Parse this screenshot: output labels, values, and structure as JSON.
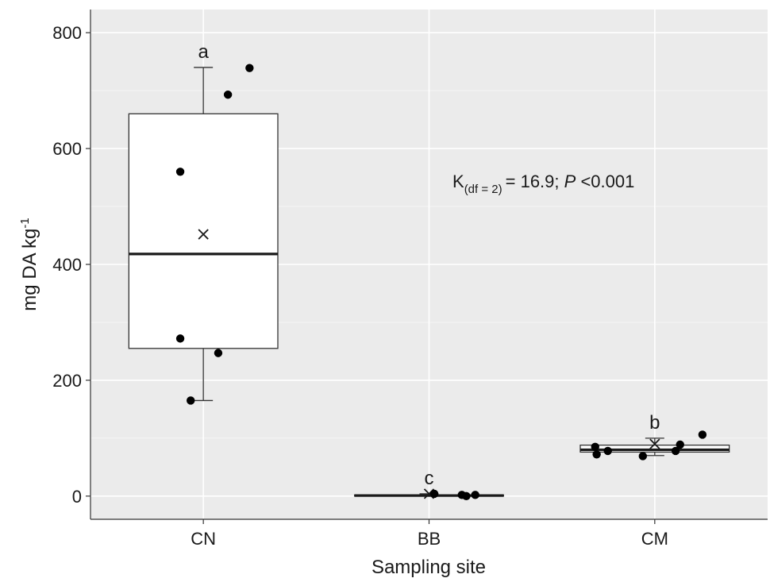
{
  "chart_data": {
    "type": "box",
    "xlabel": "Sampling site",
    "ylabel": {
      "base": "mg DA kg",
      "superscript": "-1"
    },
    "ylim": [
      -40,
      840
    ],
    "yticks": [
      0,
      200,
      400,
      600,
      800
    ],
    "grid": true,
    "categories": [
      "CN",
      "BB",
      "CM"
    ],
    "groups": [
      {
        "name": "CN",
        "whisker_low": 165,
        "q1": 255,
        "median": 418,
        "q3": 660,
        "whisker_high": 740,
        "mean": 452,
        "letter": "a",
        "points": [
          {
            "dx": -0.31,
            "y": 560
          },
          {
            "dx": -0.31,
            "y": 272
          },
          {
            "dx": -0.17,
            "y": 165
          },
          {
            "dx": 0.2,
            "y": 247
          },
          {
            "dx": 0.33,
            "y": 693
          },
          {
            "dx": 0.62,
            "y": 739
          }
        ]
      },
      {
        "name": "BB",
        "whisker_low": 0,
        "q1": 0,
        "median": 1,
        "q3": 2,
        "whisker_high": 4,
        "mean": 4,
        "letter": "c",
        "points": [
          {
            "dx": 0.07,
            "y": 4
          },
          {
            "dx": 0.44,
            "y": 2
          },
          {
            "dx": 0.5,
            "y": 0
          },
          {
            "dx": 0.62,
            "y": 2
          }
        ]
      },
      {
        "name": "CM",
        "whisker_low": 70,
        "q1": 76,
        "median": 80,
        "q3": 88,
        "whisker_high": 100,
        "mean": 90,
        "letter": "b",
        "points": [
          {
            "dx": -0.8,
            "y": 85
          },
          {
            "dx": -0.78,
            "y": 72
          },
          {
            "dx": -0.63,
            "y": 78
          },
          {
            "dx": -0.16,
            "y": 69
          },
          {
            "dx": 0.28,
            "y": 78
          },
          {
            "dx": 0.34,
            "y": 89
          },
          {
            "dx": 0.64,
            "y": 106
          }
        ]
      }
    ],
    "annotation": {
      "k_symbol": "K",
      "k_subscript": "(df = 2)",
      "k_value": "= 16.9; ",
      "p_symbol": "P",
      "p_value": " <0.001"
    }
  }
}
